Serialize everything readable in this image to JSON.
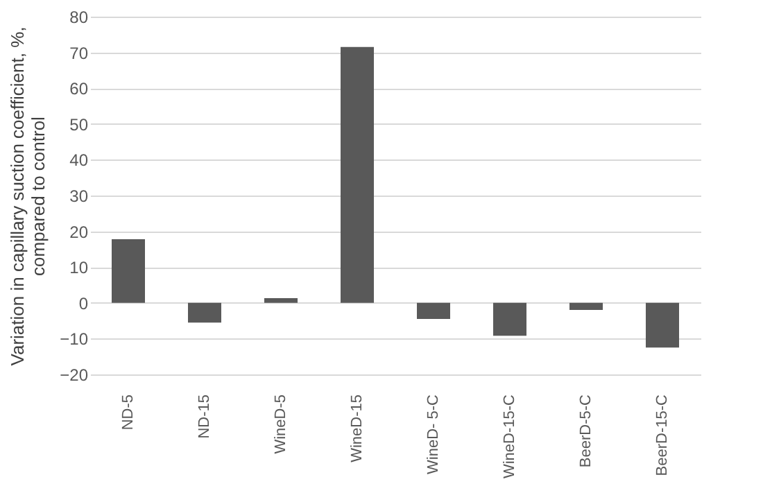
{
  "chart_data": {
    "type": "bar",
    "ylabel": "Variation in capillary suction coefficient, %, compared to control",
    "categories": [
      "ND-5",
      "ND-15",
      "WineD-5",
      "WineD-15",
      "WineD- 5-C",
      "WineD-15-C",
      "BeerD-5-C",
      "BeerD-15-C"
    ],
    "values": [
      17.8,
      -5.5,
      1.3,
      71.5,
      -4.5,
      -9.2,
      -2,
      -12.5
    ],
    "color": "#595959",
    "ylim": [
      -20,
      80
    ],
    "yticks": [
      -20,
      -10,
      0,
      10,
      20,
      30,
      40,
      50,
      60,
      70,
      80
    ],
    "grid": "y"
  }
}
